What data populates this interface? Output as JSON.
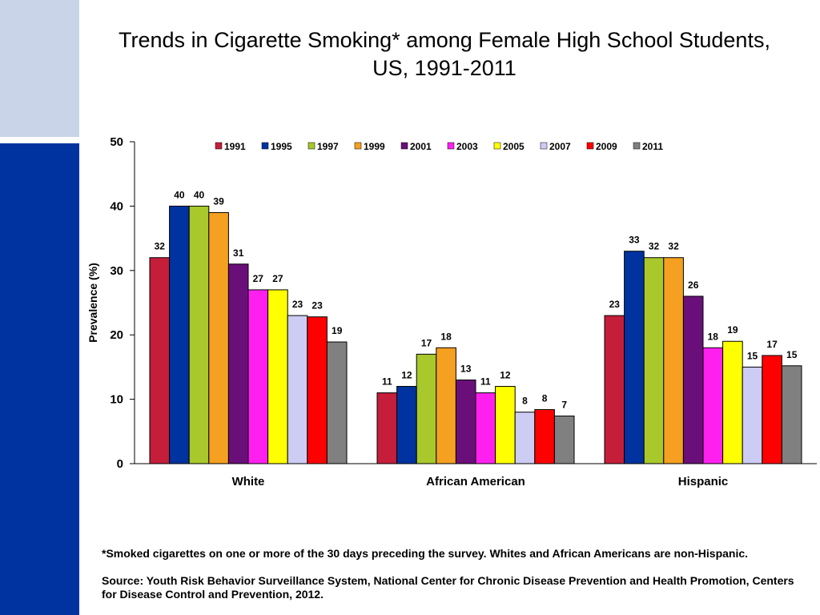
{
  "slide": {
    "title_line1": "Trends in Cigarette Smoking* among Female High School Students,",
    "title_line2": "US, 1991-2011",
    "footnote": "*Smoked cigarettes on one or more of the 30 days preceding the survey. Whites and African Americans are non-Hispanic.",
    "source": "Source: Youth Risk Behavior Surveillance System, National Center for Chronic Disease Prevention and Health Promotion, Centers for Disease Control and Prevention, 2012.",
    "accent_colors": {
      "side_light": "#cad4e8",
      "side_dark": "#0033a0"
    }
  },
  "chart_data": {
    "type": "bar",
    "title": "Trends in Cigarette Smoking* among Female High School Students, US, 1991-2011",
    "ylabel": "Prevalence (%)",
    "xlabel": "",
    "ylim": [
      0,
      50
    ],
    "yticks": [
      0,
      10,
      20,
      30,
      40,
      50
    ],
    "grid": false,
    "legend": "top",
    "categories": [
      "White",
      "African American",
      "Hispanic"
    ],
    "series": [
      {
        "name": "1991",
        "color": "#c41e3a",
        "values": [
          32,
          11,
          23
        ],
        "labels": [
          "32",
          "11",
          "23"
        ]
      },
      {
        "name": "1995",
        "color": "#0033a0",
        "values": [
          40,
          12,
          33
        ],
        "labels": [
          "40",
          "12",
          "33"
        ]
      },
      {
        "name": "1997",
        "color": "#a8c82c",
        "values": [
          40,
          17,
          32
        ],
        "labels": [
          "40",
          "17",
          "32"
        ]
      },
      {
        "name": "1999",
        "color": "#f5a020",
        "values": [
          39,
          18,
          32
        ],
        "labels": [
          "39",
          "18",
          "32"
        ]
      },
      {
        "name": "2001",
        "color": "#6a0f7a",
        "values": [
          31,
          13,
          26
        ],
        "labels": [
          "31",
          "13",
          "26"
        ]
      },
      {
        "name": "2003",
        "color": "#ff20f0",
        "values": [
          27,
          11,
          18
        ],
        "labels": [
          "27",
          "11",
          "18"
        ]
      },
      {
        "name": "2005",
        "color": "#ffff00",
        "values": [
          27,
          12,
          19
        ],
        "labels": [
          "27",
          "12",
          "19"
        ]
      },
      {
        "name": "2007",
        "color": "#ccccf5",
        "values": [
          23,
          8,
          15
        ],
        "labels": [
          "23",
          "8",
          "15"
        ]
      },
      {
        "name": "2009",
        "color": "#ff0000",
        "values": [
          22.8,
          8.4,
          16.8
        ],
        "labels": [
          "23",
          "8",
          "17"
        ]
      },
      {
        "name": "2011",
        "color": "#808080",
        "values": [
          18.9,
          7.4,
          15.2
        ],
        "labels": [
          "19",
          "7",
          "15"
        ]
      }
    ]
  }
}
